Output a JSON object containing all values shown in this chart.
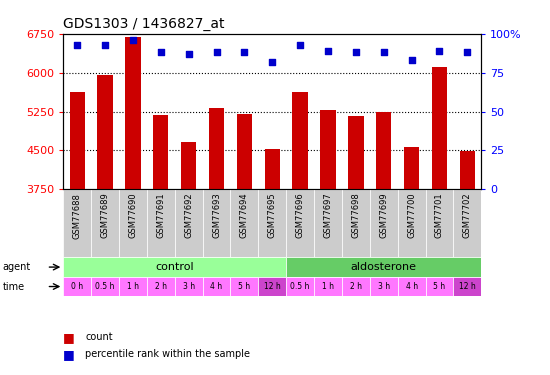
{
  "title": "GDS1303 / 1436827_at",
  "samples": [
    "GSM77688",
    "GSM77689",
    "GSM77690",
    "GSM77691",
    "GSM77692",
    "GSM77693",
    "GSM77694",
    "GSM77695",
    "GSM77696",
    "GSM77697",
    "GSM77698",
    "GSM77699",
    "GSM77700",
    "GSM77701",
    "GSM77702"
  ],
  "counts": [
    5620,
    5960,
    6680,
    5190,
    4670,
    5320,
    5210,
    4530,
    5620,
    5270,
    5160,
    5250,
    4560,
    6100,
    4490
  ],
  "percentiles": [
    93,
    93,
    96,
    88,
    87,
    88,
    88,
    82,
    93,
    89,
    88,
    88,
    83,
    89,
    88
  ],
  "ylim_left": [
    3750,
    6750
  ],
  "ylim_right": [
    0,
    100
  ],
  "yticks_left": [
    3750,
    4500,
    5250,
    6000,
    6750
  ],
  "yticks_right": [
    0,
    25,
    50,
    75,
    100
  ],
  "bar_color": "#cc0000",
  "dot_color": "#0000cc",
  "agent_control_color": "#99ff99",
  "agent_aldosterone_color": "#66cc66",
  "time_color": "#ff77ff",
  "time_color_12h": "#cc44cc",
  "gsm_bg_color": "#cccccc",
  "bg_color": "#ffffff",
  "times": [
    "0 h",
    "0.5 h",
    "1 h",
    "2 h",
    "3 h",
    "4 h",
    "5 h",
    "12 h",
    "0.5 h",
    "1 h",
    "2 h",
    "3 h",
    "4 h",
    "5 h",
    "12 h"
  ],
  "agent_labels": [
    "control",
    "aldosterone"
  ],
  "time_12h_indices": [
    7,
    14
  ]
}
